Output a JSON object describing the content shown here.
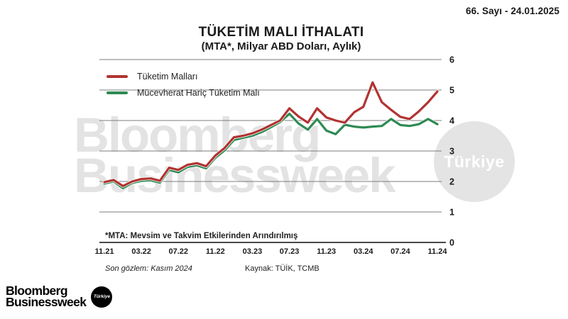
{
  "header": {
    "issue": "66. Sayı - 24.01.2025"
  },
  "title": {
    "main": "TÜKETİM MALI İTHALATI",
    "subtitle": "(MTA*, Milyar ABD Doları, Aylık)"
  },
  "legend": {
    "items": [
      {
        "label": "Tüketim Malları",
        "color": "#b13331"
      },
      {
        "label": "Mücevherat Hariç Tüketim Malı",
        "color": "#2e8a53"
      }
    ]
  },
  "footnote": "*MTA: Mevsim ve Takvim Etkilerinden Arındırılmış",
  "footer": {
    "observation": "Son gözlem: Kasım 2024",
    "source": "Kaynak: TÜİK, TCMB"
  },
  "watermark": {
    "line1": "Bloomberg",
    "line2": "Businessweek",
    "circle_label": "Türkiye"
  },
  "logo": {
    "line1": "Bloomberg",
    "line2": "Businessweek",
    "badge": "Türkiye"
  },
  "chart_data": {
    "type": "line",
    "title": "TÜKETİM MALI İTHALATI (MTA*, Milyar ABD Doları, Aylık)",
    "x_tick_labels": [
      "11.21",
      "03.22",
      "07.22",
      "11.22",
      "03.23",
      "07.23",
      "11.23",
      "03.24",
      "07.24",
      "11.24"
    ],
    "points_per_tick": 4,
    "n_points": 37,
    "ylim": [
      0,
      6
    ],
    "y_ticks": [
      0,
      1,
      2,
      3,
      4,
      5,
      6
    ],
    "ylabel_side": "right",
    "grid": true,
    "legend_position": "top-left",
    "grid_color": "#7d7d7d",
    "axis_color": "#2f2f2f",
    "series": [
      {
        "name": "Tüketim Malları",
        "color": "#b13331",
        "values": [
          1.98,
          2.05,
          1.85,
          2.0,
          2.08,
          2.1,
          2.02,
          2.45,
          2.38,
          2.55,
          2.6,
          2.5,
          2.85,
          3.1,
          3.45,
          3.5,
          3.58,
          3.7,
          3.85,
          4.0,
          4.4,
          4.13,
          3.93,
          4.4,
          4.1,
          4.0,
          3.93,
          4.27,
          4.45,
          5.25,
          4.6,
          4.35,
          4.12,
          4.05,
          4.3,
          4.6,
          4.95
        ]
      },
      {
        "name": "Mücevherat Hariç Tüketim Malı",
        "color": "#2e8a53",
        "values": [
          1.93,
          2.0,
          1.78,
          1.95,
          2.02,
          2.04,
          1.96,
          2.38,
          2.3,
          2.48,
          2.53,
          2.43,
          2.78,
          3.02,
          3.36,
          3.43,
          3.5,
          3.62,
          3.78,
          3.95,
          4.22,
          3.9,
          3.7,
          4.05,
          3.67,
          3.55,
          3.86,
          3.8,
          3.77,
          3.8,
          3.82,
          4.05,
          3.85,
          3.82,
          3.88,
          4.05,
          3.88
        ]
      }
    ]
  }
}
